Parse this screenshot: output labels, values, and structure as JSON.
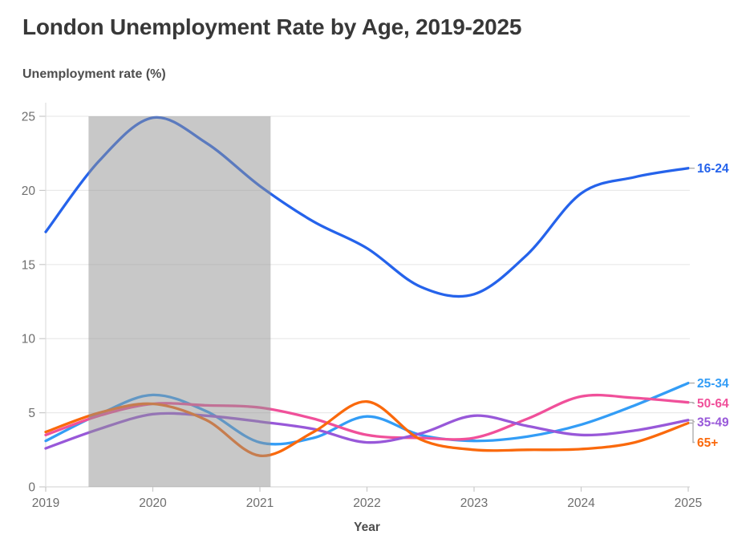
{
  "page": {
    "background": "#ffffff"
  },
  "chart_data": {
    "type": "line",
    "title": "London Unemployment Rate by Age, 2019-2025",
    "ylabel": "Unemployment rate (%)",
    "xlabel": "Year",
    "xlim": [
      2019,
      2025
    ],
    "ylim": [
      0,
      25
    ],
    "x_ticks": [
      2019,
      2020,
      2021,
      2022,
      2023,
      2024,
      2025
    ],
    "y_ticks": [
      0,
      5,
      10,
      15,
      20,
      25
    ],
    "grid": "horizontal",
    "legend_position": "right-end-labels",
    "shaded_region": {
      "x_start": 2019.4,
      "x_end": 2021.1,
      "overlay_color": "rgba(145,145,145,0.5)"
    },
    "x": [
      2019,
      2019.5,
      2020,
      2020.5,
      2021,
      2021.5,
      2022,
      2022.5,
      2023,
      2023.5,
      2024,
      2024.5,
      2025
    ],
    "series": [
      {
        "name": "16-24",
        "color": "#2563eb",
        "values": [
          17.2,
          22.0,
          24.9,
          23.2,
          20.3,
          17.9,
          16.1,
          13.5,
          13.0,
          15.7,
          19.8,
          20.9,
          21.5
        ]
      },
      {
        "name": "25-34",
        "color": "#339df6",
        "values": [
          3.1,
          4.9,
          6.2,
          5.1,
          3.0,
          3.3,
          4.75,
          3.5,
          3.1,
          3.4,
          4.2,
          5.5,
          7.0
        ]
      },
      {
        "name": "50-64",
        "color": "#f0509a",
        "values": [
          3.5,
          4.8,
          5.6,
          5.5,
          5.35,
          4.6,
          3.5,
          3.3,
          3.3,
          4.6,
          6.1,
          6.0,
          5.7
        ]
      },
      {
        "name": "35-49",
        "color": "#9858d9",
        "values": [
          2.6,
          3.9,
          4.9,
          4.8,
          4.4,
          3.9,
          3.0,
          3.6,
          4.8,
          4.1,
          3.5,
          3.8,
          4.5
        ]
      },
      {
        "name": "65+",
        "color": "#fa690c",
        "values": [
          3.7,
          5.0,
          5.6,
          4.5,
          2.1,
          3.7,
          5.75,
          3.2,
          2.5,
          2.5,
          2.55,
          3.0,
          4.3
        ]
      }
    ]
  }
}
